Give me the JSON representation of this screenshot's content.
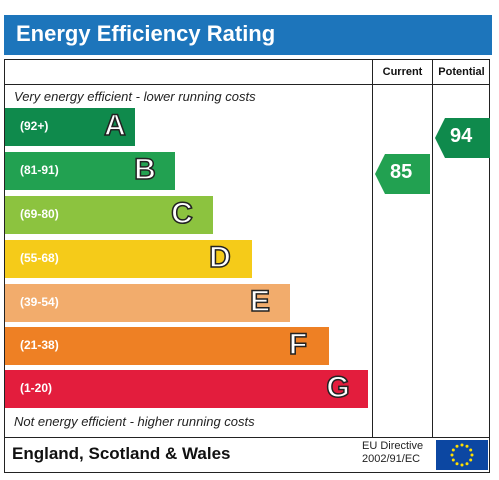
{
  "title": "Energy Efficiency Rating",
  "columns": {
    "current": "Current",
    "potential": "Potential"
  },
  "top_caption": "Very energy efficient - lower running costs",
  "bottom_caption": "Not energy efficient - higher running costs",
  "bands": [
    {
      "range": "(92+)",
      "letter": "A",
      "color": "#0f8a4c"
    },
    {
      "range": "(81-91)",
      "letter": "B",
      "color": "#22a151"
    },
    {
      "range": "(69-80)",
      "letter": "C",
      "color": "#8cc33f"
    },
    {
      "range": "(55-68)",
      "letter": "D",
      "color": "#f5cb19"
    },
    {
      "range": "(39-54)",
      "letter": "E",
      "color": "#f2ac6c"
    },
    {
      "range": "(21-38)",
      "letter": "F",
      "color": "#ee8024"
    },
    {
      "range": "(1-20)",
      "letter": "G",
      "color": "#e31d3d"
    }
  ],
  "current": {
    "value": "85",
    "band": "B",
    "color": "#22a151"
  },
  "potential": {
    "value": "94",
    "band": "A",
    "color": "#0f8a4c"
  },
  "footer": {
    "region": "England, Scotland & Wales",
    "directive_line1": "EU Directive",
    "directive_line2": "2002/91/EC"
  }
}
